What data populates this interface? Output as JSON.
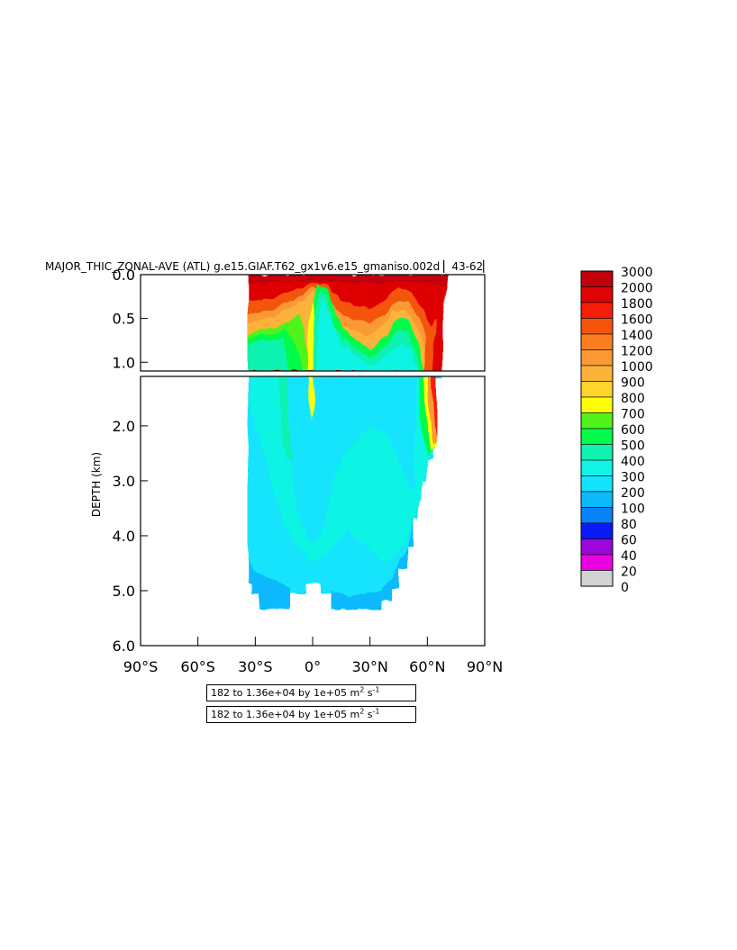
{
  "header": {
    "title": "MAJOR_THIC_ZONAL-AVE (ATL) g.e15.GIAF.T62_gx1v6.e15_gmaniso.002d ▏43-62▏"
  },
  "axes": {
    "ylabel": "DEPTH (km)",
    "y_ticks_upper": [
      "0.0",
      "0.5",
      "1.0"
    ],
    "y_ticks_lower": [
      "2.0",
      "3.0",
      "4.0",
      "5.0",
      "6.0"
    ],
    "x_ticks": [
      "90°S",
      "60°S",
      "30°S",
      "0°",
      "30°N",
      "60°N",
      "90°N"
    ]
  },
  "info_boxes": [
    {
      "prefix": "182 to 1.36e+04 by 1e+05 m",
      "sup1": "2",
      "mid": " s",
      "sup2": "-1"
    },
    {
      "prefix": "182 to 1.36e+04 by 1e+05 m",
      "sup1": "2",
      "mid": " s",
      "sup2": "-1"
    }
  ],
  "chart_data": {
    "type": "heatmap",
    "title": "MAJOR_THIC_ZONAL-AVE (ATL) g.e15.GIAF.T62_gx1v6.e15_gmaniso.002d ▏43-62▏",
    "xlabel": "",
    "ylabel": "DEPTH (km)",
    "xlim": [
      -90,
      90
    ],
    "ylim_upper": [
      0.0,
      1.1
    ],
    "ylim_lower": [
      1.1,
      6.0
    ],
    "units": "m^2 s^-1",
    "colorbar": {
      "levels": [
        "3000",
        "2000",
        "1800",
        "1600",
        "1400",
        "1200",
        "1000",
        "900",
        "800",
        "700",
        "600",
        "500",
        "400",
        "300",
        "200",
        "100",
        "80",
        "60",
        "40",
        "20",
        "0"
      ],
      "colors": [
        "#c0000b",
        "#de0306",
        "#f61e07",
        "#f4550b",
        "#fd7e20",
        "#fb9a35",
        "#fdb33a",
        "#ffd52a",
        "#fffd08",
        "#50f41a",
        "#05fb4b",
        "#0ff2b0",
        "#11f4e5",
        "#12e4fd",
        "#0bbafd",
        "#0881f9",
        "#0a1af6",
        "#9b07da",
        "#eb02e4",
        "#d3d3d3",
        "#6d6d6d"
      ]
    },
    "bathymetry_max_depth_km": [
      [
        -34,
        4.87
      ],
      [
        -31,
        4.87
      ],
      [
        -31,
        5.05
      ],
      [
        -28,
        5.05
      ],
      [
        -28,
        5.35
      ],
      [
        -12,
        5.35
      ],
      [
        -12,
        5.05
      ],
      [
        -3,
        5.05
      ],
      [
        -3,
        4.87
      ],
      [
        4,
        4.87
      ],
      [
        4,
        5.05
      ],
      [
        10,
        5.05
      ],
      [
        10,
        5.35
      ],
      [
        36,
        5.35
      ],
      [
        36,
        5.2
      ],
      [
        41,
        5.2
      ],
      [
        41,
        4.95
      ],
      [
        45,
        4.95
      ],
      [
        45,
        4.6
      ],
      [
        50,
        4.6
      ],
      [
        50,
        4.2
      ],
      [
        53,
        4.2
      ],
      [
        53,
        3.7
      ],
      [
        55,
        3.7
      ],
      [
        55,
        3.35
      ],
      [
        57,
        3.35
      ],
      [
        57,
        3.0
      ],
      [
        59,
        3.0
      ],
      [
        59,
        2.6
      ],
      [
        63,
        2.6
      ],
      [
        63,
        2.2
      ],
      [
        65,
        2.2
      ],
      [
        65,
        1.12
      ],
      [
        68,
        1.12
      ],
      [
        68,
        0.55
      ],
      [
        71,
        0.0
      ]
    ],
    "surface_extent_lat": [
      -34,
      71
    ],
    "regions": [
      {
        "lat": [
          -34,
          70
        ],
        "depth_km": [
          0.0,
          0.3
        ],
        "value_range": "2000-3000"
      },
      {
        "lat": [
          -34,
          50
        ],
        "depth_km": [
          0.3,
          0.7
        ],
        "value_range": "1000-1600"
      },
      {
        "lat": [
          -34,
          55
        ],
        "depth_km": [
          0.7,
          1.1
        ],
        "value_range": "600-900"
      },
      {
        "lat": [
          -34,
          65
        ],
        "depth_km": [
          1.1,
          5.35
        ],
        "value_range": "300-600"
      },
      {
        "lat": [
          58,
          66
        ],
        "depth_km": [
          1.1,
          2.5
        ],
        "value_range": "1000-2000"
      }
    ]
  }
}
